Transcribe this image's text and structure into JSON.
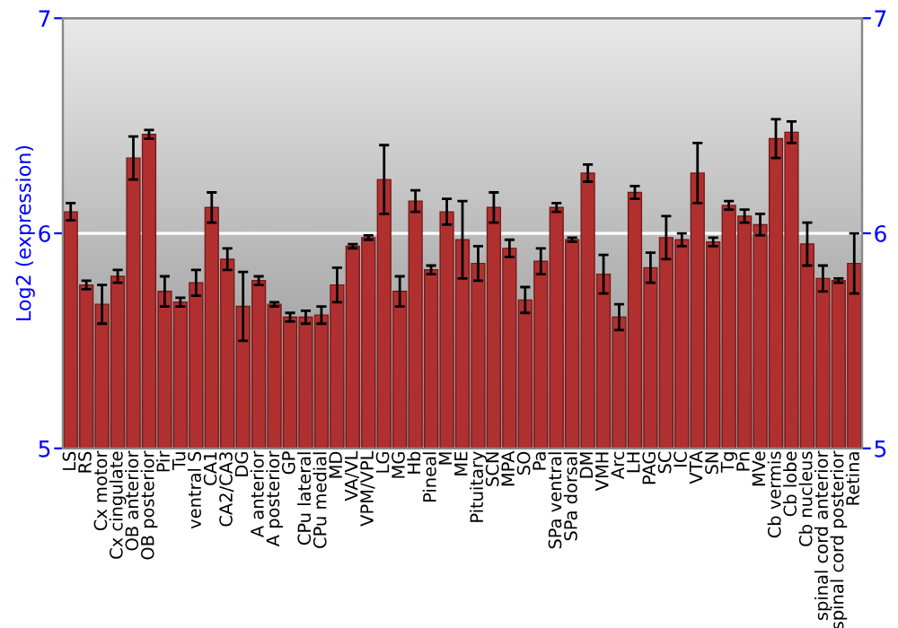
{
  "chart_data": {
    "type": "bar",
    "ylabel": "Log2 (expression)",
    "categories": [
      "LS",
      "RS",
      "Cx motor",
      "Cx cingulate",
      "OB anterior",
      "OB posterior",
      "Pir",
      "Tu",
      "ventral S",
      "CA1",
      "CA2/CA3",
      "DG",
      "A anterior",
      "A posterior",
      "GP",
      "CPu lateral",
      "CPu medial",
      "MD",
      "VA/VL",
      "VPM/VPL",
      "LG",
      "MG",
      "Hb",
      "Pineal",
      "M",
      "ME",
      "Pituitary",
      "SCN",
      "MPA",
      "SO",
      "Pa",
      "SPa ventral",
      "SPa dorsal",
      "DM",
      "VMH",
      "Arc",
      "LH",
      "PAG",
      "SC",
      "IC",
      "VTA",
      "SN",
      "Tg",
      "Pn",
      "MVe",
      "Cb vermis",
      "Cb lobe",
      "Cb nucleus",
      "spinal cord anterior",
      "spinal cord posterior",
      "Retina"
    ],
    "series": [
      {
        "color": "#b03030",
        "values": [
          6.1,
          5.76,
          5.67,
          5.8,
          6.35,
          6.46,
          5.73,
          5.68,
          5.77,
          6.12,
          5.88,
          5.66,
          5.78,
          5.67,
          5.61,
          5.61,
          5.62,
          5.76,
          5.94,
          5.98,
          6.25,
          5.73,
          6.15,
          5.83,
          6.1,
          5.97,
          5.86,
          6.12,
          5.93,
          5.69,
          5.87,
          6.12,
          5.97,
          6.28,
          5.81,
          5.61,
          6.19,
          5.84,
          5.98,
          5.97,
          6.28,
          5.96,
          6.13,
          6.08,
          6.04,
          6.44,
          6.47,
          5.95,
          5.79,
          5.78,
          5.86
        ],
        "errors": [
          0.04,
          0.02,
          0.09,
          0.03,
          0.1,
          0.02,
          0.07,
          0.02,
          0.06,
          0.07,
          0.05,
          0.16,
          0.02,
          0.01,
          0.02,
          0.03,
          0.04,
          0.08,
          0.01,
          0.01,
          0.16,
          0.07,
          0.05,
          0.02,
          0.06,
          0.18,
          0.08,
          0.07,
          0.04,
          0.06,
          0.06,
          0.02,
          0.01,
          0.04,
          0.09,
          0.06,
          0.03,
          0.07,
          0.1,
          0.03,
          0.14,
          0.02,
          0.02,
          0.03,
          0.05,
          0.09,
          0.05,
          0.1,
          0.06,
          0.01,
          0.14
        ]
      }
    ],
    "ylim": [
      5,
      7
    ],
    "yticks": [
      5,
      6,
      7
    ],
    "y2lim": [
      5,
      7
    ],
    "y2ticks": [
      5,
      6,
      7
    ],
    "grid": "y",
    "legend": false
  }
}
